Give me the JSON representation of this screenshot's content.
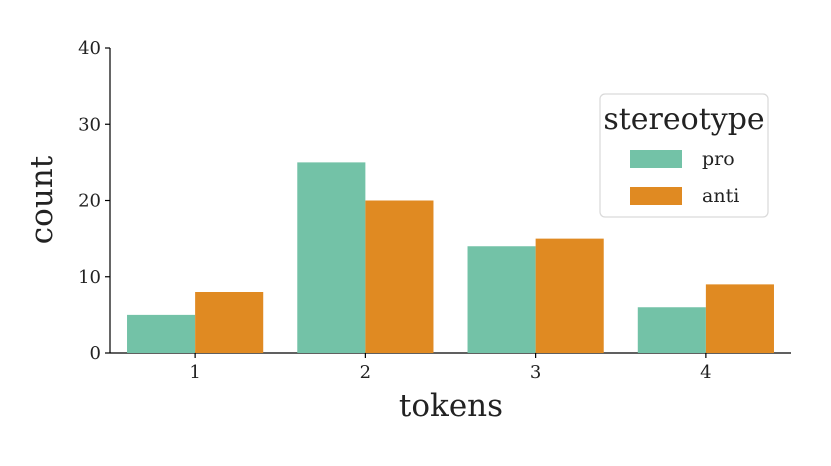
{
  "chart_data": {
    "type": "bar",
    "title": "",
    "xlabel": "tokens",
    "ylabel": "count",
    "categories": [
      "1",
      "2",
      "3",
      "4"
    ],
    "series": [
      {
        "name": "pro",
        "values": [
          5,
          25,
          14,
          6
        ],
        "color": "#73c2a7"
      },
      {
        "name": "anti",
        "values": [
          8,
          20,
          15,
          9
        ],
        "color": "#e08a22"
      }
    ],
    "ylim": [
      0,
      40
    ],
    "yticks": [
      0,
      10,
      20,
      30,
      40
    ],
    "yticklabels": [
      "0",
      "10",
      "20",
      "30",
      "40"
    ],
    "grid": false,
    "legend": {
      "title": "stereotype",
      "placement": "upper right"
    }
  }
}
